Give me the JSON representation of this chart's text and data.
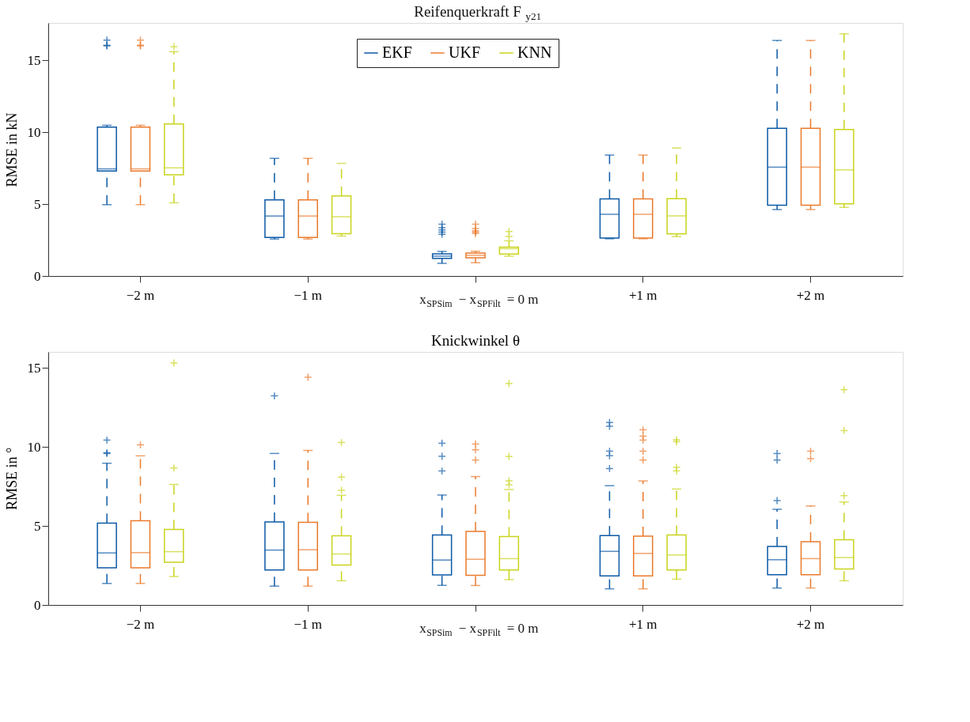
{
  "chart_data": [
    {
      "type": "box",
      "title": "Reifenquerkraft F$_{y21}$",
      "ylabel": "RMSE in kN",
      "categories": [
        "−2 m",
        "−1 m",
        "x$_{SPSim}$ − x$_{SPFilt}$ = 0 m",
        "+1 m",
        "+2 m"
      ],
      "ylim": [
        0,
        17.6
      ],
      "yticks": [
        0,
        5,
        10,
        15
      ],
      "grid": false,
      "legend": "top",
      "series": [
        {
          "name": "EKF",
          "color": "#0c5aa6",
          "boxes": [
            {
              "low": 4.96,
              "q1": 7.3,
              "median": 7.45,
              "q3": 10.35,
              "high": 10.48,
              "outliers": [
                16.0,
                16.05,
                16.4
              ]
            },
            {
              "low": 2.57,
              "q1": 2.68,
              "median": 4.17,
              "q3": 5.29,
              "high": 8.18
            },
            {
              "low": 0.88,
              "q1": 1.23,
              "median": 1.38,
              "q3": 1.54,
              "high": 1.71,
              "outliers": [
                2.9,
                3.05,
                3.2,
                3.35,
                3.6
              ]
            },
            {
              "low": 2.59,
              "q1": 2.64,
              "median": 4.29,
              "q3": 5.36,
              "high": 8.41
            },
            {
              "low": 4.62,
              "q1": 4.92,
              "median": 7.57,
              "q3": 10.27,
              "high": 16.38
            }
          ]
        },
        {
          "name": "UKF",
          "color": "#ea7a2c",
          "boxes": [
            {
              "low": 4.96,
              "q1": 7.3,
              "median": 7.45,
              "q3": 10.35,
              "high": 10.48,
              "outliers": [
                16.0,
                16.05,
                16.4
              ]
            },
            {
              "low": 2.57,
              "q1": 2.68,
              "median": 4.17,
              "q3": 5.29,
              "high": 8.18
            },
            {
              "low": 0.92,
              "q1": 1.26,
              "median": 1.44,
              "q3": 1.59,
              "high": 1.72,
              "outliers": [
                2.95,
                3.05,
                3.15,
                3.3,
                3.6
              ]
            },
            {
              "low": 2.59,
              "q1": 2.64,
              "median": 4.29,
              "q3": 5.36,
              "high": 8.41
            },
            {
              "low": 4.62,
              "q1": 4.92,
              "median": 7.57,
              "q3": 10.27,
              "high": 16.38
            }
          ]
        },
        {
          "name": "KNN",
          "color": "#c9d41c",
          "boxes": [
            {
              "low": 5.09,
              "q1": 7.04,
              "median": 7.52,
              "q3": 10.57,
              "high": 15.6,
              "outliers": [
                15.95
              ]
            },
            {
              "low": 2.78,
              "q1": 2.94,
              "median": 4.12,
              "q3": 5.57,
              "high": 7.83
            },
            {
              "low": 1.38,
              "q1": 1.53,
              "median": 1.9,
              "q3": 2.01,
              "high": 2.45,
              "outliers": [
                2.75,
                3.1
              ]
            },
            {
              "low": 2.74,
              "q1": 2.93,
              "median": 4.18,
              "q3": 5.38,
              "high": 8.9
            },
            {
              "low": 4.77,
              "q1": 5.02,
              "median": 7.38,
              "q3": 10.19,
              "high": 16.84
            }
          ]
        }
      ]
    },
    {
      "type": "box",
      "title": "Knickwinkel θ",
      "ylabel": "RMSE in °",
      "categories": [
        "−2 m",
        "−1 m",
        "x$_{SPSim}$ − x$_{SPFilt}$ = 0 m",
        "+1 m",
        "+2 m"
      ],
      "ylim": [
        0,
        16
      ],
      "yticks": [
        0,
        5,
        10,
        15
      ],
      "grid": false,
      "series": [
        {
          "color": "#0c5aa6",
          "boxes": [
            {
              "low": 1.36,
              "q1": 2.35,
              "median": 3.29,
              "q3": 5.18,
              "high": 8.96,
              "outliers": [
                9.58,
                9.62,
                10.42
              ]
            },
            {
              "low": 1.19,
              "q1": 2.21,
              "median": 3.47,
              "q3": 5.25,
              "high": 9.58,
              "outliers": [
                13.22
              ]
            },
            {
              "low": 1.24,
              "q1": 1.9,
              "median": 2.84,
              "q3": 4.43,
              "high": 6.95,
              "outliers": [
                8.47,
                9.4,
                10.23
              ]
            },
            {
              "low": 1.02,
              "q1": 1.84,
              "median": 3.39,
              "q3": 4.39,
              "high": 7.54,
              "outliers": [
                8.63,
                9.44,
                9.72,
                11.3,
                11.54
              ]
            },
            {
              "low": 1.07,
              "q1": 1.91,
              "median": 2.86,
              "q3": 3.7,
              "high": 6.05,
              "outliers": [
                6.6,
                9.16,
                9.58
              ]
            }
          ]
        },
        {
          "color": "#ea7a2c",
          "boxes": [
            {
              "low": 1.36,
              "q1": 2.35,
              "median": 3.31,
              "q3": 5.32,
              "high": 9.43,
              "outliers": [
                10.12
              ]
            },
            {
              "low": 1.19,
              "q1": 2.21,
              "median": 3.49,
              "q3": 5.23,
              "high": 9.77,
              "outliers": [
                14.4
              ]
            },
            {
              "low": 1.23,
              "q1": 1.88,
              "median": 2.89,
              "q3": 4.65,
              "high": 8.12,
              "outliers": [
                9.16,
                9.81,
                10.18
              ]
            },
            {
              "low": 1.02,
              "q1": 1.84,
              "median": 3.26,
              "q3": 4.35,
              "high": 7.84,
              "outliers": [
                9.16,
                9.72,
                10.42,
                10.68,
                11.07
              ]
            },
            {
              "low": 1.07,
              "q1": 1.91,
              "median": 2.93,
              "q3": 4.0,
              "high": 6.26,
              "outliers": [
                9.25,
                9.72
              ]
            }
          ]
        },
        {
          "color": "#c9d41c",
          "boxes": [
            {
              "low": 1.8,
              "q1": 2.7,
              "median": 3.37,
              "q3": 4.78,
              "high": 7.62,
              "outliers": [
                8.66,
                15.3
              ]
            },
            {
              "low": 1.53,
              "q1": 2.53,
              "median": 3.22,
              "q3": 4.38,
              "high": 6.93,
              "outliers": [
                7.25,
                8.09,
                10.27
              ]
            },
            {
              "low": 1.6,
              "q1": 2.21,
              "median": 2.93,
              "q3": 4.32,
              "high": 7.3,
              "outliers": [
                7.6,
                7.85,
                9.39,
                14.0
              ]
            },
            {
              "low": 1.63,
              "q1": 2.21,
              "median": 3.16,
              "q3": 4.42,
              "high": 7.33,
              "outliers": [
                8.47,
                8.7,
                10.32,
                10.44
              ]
            },
            {
              "low": 1.53,
              "q1": 2.28,
              "median": 3.0,
              "q3": 4.12,
              "high": 6.51,
              "outliers": [
                6.91,
                11.02,
                13.61
              ]
            }
          ]
        }
      ]
    }
  ]
}
